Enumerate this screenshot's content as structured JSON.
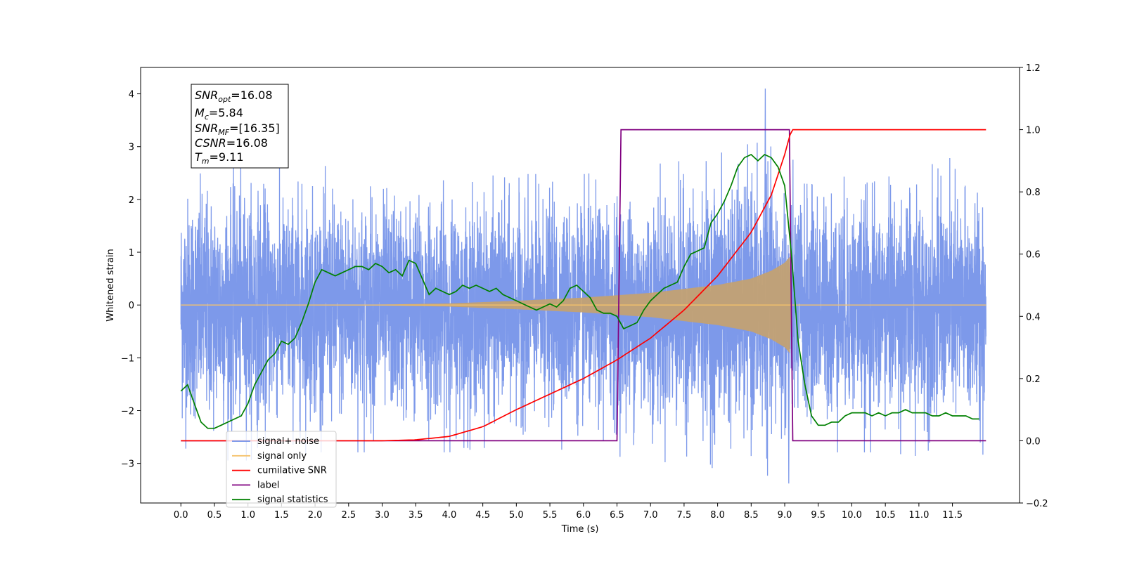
{
  "chart_data": {
    "type": "line",
    "title": "",
    "xlabel": "Time (s)",
    "ylabel": "Whitened strain",
    "xlim": [
      -0.6,
      12.5
    ],
    "ylim": [
      -3.75,
      4.5
    ],
    "y2lim": [
      -0.2,
      1.2
    ],
    "x_ticks": [
      "0.0",
      "0.5",
      "1.0",
      "1.5",
      "2.0",
      "2.5",
      "3.0",
      "3.5",
      "4.0",
      "4.5",
      "5.0",
      "5.5",
      "6.0",
      "6.5",
      "7.0",
      "7.5",
      "8.0",
      "8.5",
      "9.0",
      "9.5",
      "10.0",
      "10.5",
      "11.0",
      "11.5"
    ],
    "y_ticks": [
      "−3",
      "−2",
      "−1",
      "0",
      "1",
      "2",
      "3",
      "4"
    ],
    "y2_ticks": [
      "−0.2",
      "0.0",
      "0.2",
      "0.4",
      "0.6",
      "0.8",
      "1.0",
      "1.2"
    ],
    "grid": false,
    "legend_position": "lower-left",
    "noise_envelope": {
      "x": [
        0.0,
        1.0,
        2.0,
        3.0,
        4.0,
        5.0,
        6.0,
        7.0,
        8.0,
        8.7,
        9.0,
        9.5,
        10.5,
        11.5,
        12.0
      ],
      "typical_upper": [
        1.8,
        1.8,
        1.7,
        1.7,
        1.6,
        1.6,
        1.6,
        1.7,
        1.9,
        2.0,
        1.8,
        1.7,
        1.7,
        1.8,
        1.8
      ],
      "typical_lower": [
        -1.9,
        -1.9,
        -1.8,
        -1.8,
        -1.8,
        -1.7,
        -1.8,
        -1.9,
        -2.0,
        -2.1,
        -2.0,
        -1.8,
        -1.8,
        -1.9,
        -1.9
      ],
      "peak_max": 4.1,
      "peak_min": -3.38
    },
    "chirp": {
      "x": [
        0.0,
        3.0,
        4.0,
        5.0,
        6.0,
        7.0,
        8.0,
        8.5,
        8.8,
        9.0,
        9.08,
        9.1,
        12.0
      ],
      "amplitude": [
        0.0,
        0.01,
        0.03,
        0.08,
        0.14,
        0.23,
        0.38,
        0.5,
        0.65,
        0.8,
        0.92,
        0.0,
        0.0
      ]
    },
    "series": [
      {
        "name": "signal+ noise",
        "color": "#6f8ee8",
        "axis": "left"
      },
      {
        "name": "signal only",
        "color": "#f5c26b",
        "axis": "left"
      },
      {
        "name": "cumilative SNR",
        "color": "#ff0000",
        "axis": "right",
        "x": [
          0.0,
          3.0,
          3.5,
          4.0,
          4.5,
          5.0,
          5.5,
          6.0,
          6.5,
          7.0,
          7.5,
          8.0,
          8.5,
          8.8,
          9.0,
          9.1,
          12.0
        ],
        "values": [
          0.0,
          0.0,
          0.003,
          0.014,
          0.045,
          0.1,
          0.15,
          0.2,
          0.26,
          0.33,
          0.42,
          0.53,
          0.67,
          0.79,
          0.92,
          1.0,
          1.0
        ]
      },
      {
        "name": "label",
        "color": "#800080",
        "axis": "right",
        "x": [
          0.0,
          6.5,
          6.56,
          9.07,
          9.12,
          12.0
        ],
        "values": [
          0.0,
          0.0,
          1.0,
          1.0,
          0.0,
          0.0
        ]
      },
      {
        "name": "signal statistics",
        "color": "#008000",
        "axis": "right",
        "x": [
          0.0,
          0.1,
          0.2,
          0.3,
          0.4,
          0.5,
          0.6,
          0.7,
          0.8,
          0.9,
          1.0,
          1.1,
          1.2,
          1.3,
          1.4,
          1.5,
          1.6,
          1.7,
          1.8,
          1.9,
          2.0,
          2.1,
          2.2,
          2.3,
          2.4,
          2.5,
          2.6,
          2.7,
          2.8,
          2.9,
          3.0,
          3.1,
          3.2,
          3.3,
          3.4,
          3.5,
          3.6,
          3.7,
          3.8,
          3.9,
          4.0,
          4.1,
          4.2,
          4.3,
          4.4,
          4.5,
          4.6,
          4.7,
          4.8,
          4.9,
          5.0,
          5.1,
          5.2,
          5.3,
          5.4,
          5.5,
          5.6,
          5.7,
          5.8,
          5.9,
          6.0,
          6.1,
          6.2,
          6.3,
          6.4,
          6.5,
          6.6,
          6.7,
          6.8,
          6.9,
          7.0,
          7.1,
          7.2,
          7.3,
          7.4,
          7.5,
          7.6,
          7.7,
          7.8,
          7.9,
          8.0,
          8.1,
          8.2,
          8.3,
          8.4,
          8.5,
          8.6,
          8.7,
          8.8,
          8.9,
          9.0,
          9.1,
          9.2,
          9.3,
          9.4,
          9.5,
          9.6,
          9.7,
          9.8,
          9.9,
          10.0,
          10.1,
          10.2,
          10.3,
          10.4,
          10.5,
          10.6,
          10.7,
          10.8,
          10.9,
          11.0,
          11.1,
          11.2,
          11.3,
          11.4,
          11.5,
          11.6,
          11.7,
          11.8,
          11.9
        ],
        "values": [
          0.16,
          0.18,
          0.12,
          0.06,
          0.04,
          0.04,
          0.05,
          0.06,
          0.07,
          0.08,
          0.12,
          0.18,
          0.22,
          0.26,
          0.28,
          0.32,
          0.31,
          0.33,
          0.38,
          0.44,
          0.51,
          0.55,
          0.54,
          0.53,
          0.54,
          0.55,
          0.56,
          0.56,
          0.55,
          0.57,
          0.56,
          0.54,
          0.55,
          0.53,
          0.58,
          0.57,
          0.52,
          0.47,
          0.49,
          0.48,
          0.47,
          0.48,
          0.5,
          0.49,
          0.5,
          0.49,
          0.48,
          0.49,
          0.47,
          0.46,
          0.45,
          0.44,
          0.43,
          0.42,
          0.43,
          0.44,
          0.43,
          0.45,
          0.49,
          0.5,
          0.48,
          0.46,
          0.42,
          0.41,
          0.41,
          0.4,
          0.36,
          0.37,
          0.38,
          0.42,
          0.45,
          0.47,
          0.49,
          0.5,
          0.51,
          0.56,
          0.6,
          0.61,
          0.62,
          0.7,
          0.73,
          0.77,
          0.82,
          0.88,
          0.91,
          0.92,
          0.9,
          0.92,
          0.91,
          0.88,
          0.82,
          0.6,
          0.32,
          0.18,
          0.08,
          0.05,
          0.05,
          0.06,
          0.06,
          0.08,
          0.09,
          0.09,
          0.09,
          0.08,
          0.09,
          0.08,
          0.09,
          0.09,
          0.1,
          0.09,
          0.09,
          0.09,
          0.08,
          0.08,
          0.09,
          0.08,
          0.08,
          0.08,
          0.07,
          0.07
        ]
      }
    ],
    "annotation_box": {
      "snr_opt": {
        "var": "SNR",
        "sub": "opt",
        "value": "=16.08"
      },
      "mc": {
        "var": "M",
        "sub": "c",
        "value": "=5.84"
      },
      "snr_mf": {
        "var": "SNR",
        "sub": "MF",
        "value": "=[16.35]"
      },
      "csnr": {
        "var": "CSNR",
        "value": "=16.08"
      },
      "tm": {
        "var": "T",
        "sub": "m",
        "value": "=9.11"
      }
    }
  }
}
